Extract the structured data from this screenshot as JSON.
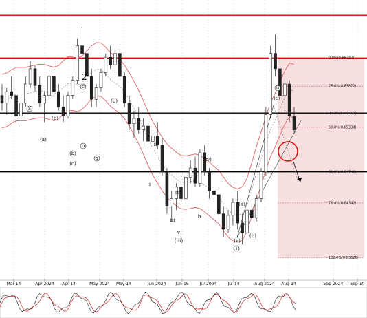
{
  "chart_data": {
    "type": "candlestick",
    "x_tick_labels": [
      "Mar-14",
      "Apr-2024",
      "Apr-14",
      "May-2024",
      "May-14",
      "Jun-2024",
      "Jun-16",
      "Jul-2024",
      "Jul-14",
      "Aug-2024",
      "Aug-14",
      "Sep-2024",
      "Sep-10"
    ],
    "fibonacci_levels": [
      {
        "label": "0.0%(0.86242)",
        "value": 0.86242
      },
      {
        "label": "23.6%(0.85872)",
        "value": 0.85872
      },
      {
        "label": "38.2%(0.85519)",
        "value": 0.85519
      },
      {
        "label": "50.0%(0.85334)",
        "value": 0.85334
      },
      {
        "label": "61.8%(0.84748)",
        "value": 0.84748
      },
      {
        "label": "76.4%(0.84342)",
        "value": 0.84342
      },
      {
        "label": "100.0%(0.83625)",
        "value": 0.83625
      }
    ],
    "wave_labels": [
      {
        "text": "a",
        "style": "circled"
      },
      {
        "text": "(a)",
        "style": "paren"
      },
      {
        "text": "(b)",
        "style": "paren"
      },
      {
        "text": "(c)",
        "style": "paren"
      },
      {
        "text": "b",
        "style": "circled"
      },
      {
        "text": "2",
        "style": "plain"
      },
      {
        "text": "c",
        "style": "circled"
      },
      {
        "text": "(b)",
        "style": "paren"
      },
      {
        "text": "a",
        "style": "circled"
      },
      {
        "text": "b",
        "style": "circled"
      },
      {
        "text": "ii",
        "style": "plain"
      },
      {
        "text": "i",
        "style": "plain"
      },
      {
        "text": "iii",
        "style": "plain"
      },
      {
        "text": "iv",
        "style": "plain"
      },
      {
        "text": "a",
        "style": "plain"
      },
      {
        "text": "b",
        "style": "plain"
      },
      {
        "text": "c",
        "style": "plain"
      },
      {
        "text": "(iv)",
        "style": "paren"
      },
      {
        "text": "v",
        "style": "plain"
      },
      {
        "text": "(iii)",
        "style": "paren"
      },
      {
        "text": "(a)",
        "style": "paren"
      },
      {
        "text": "(b)",
        "style": "paren"
      },
      {
        "text": "(v)",
        "style": "paren"
      },
      {
        "text": "i",
        "style": "circled"
      },
      {
        "text": "ii",
        "style": "circled"
      },
      {
        "text": "(c)",
        "style": "paren"
      }
    ],
    "series": [
      {
        "name": "",
        "type": "candles",
        "values": [
          [
            0.8575,
            0.859,
            0.8555,
            0.8565
          ],
          [
            0.8565,
            0.8585,
            0.855,
            0.858
          ],
          [
            0.858,
            0.86,
            0.857,
            0.8575
          ],
          [
            0.8575,
            0.858,
            0.854,
            0.8548
          ],
          [
            0.8548,
            0.857,
            0.8535,
            0.8565
          ],
          [
            0.8565,
            0.86,
            0.856,
            0.859
          ],
          [
            0.859,
            0.862,
            0.8585,
            0.861
          ],
          [
            0.861,
            0.8615,
            0.858,
            0.8588
          ],
          [
            0.8588,
            0.86,
            0.856,
            0.8565
          ],
          [
            0.8565,
            0.858,
            0.854,
            0.8575
          ],
          [
            0.8575,
            0.8605,
            0.857,
            0.86
          ],
          [
            0.86,
            0.861,
            0.8575,
            0.858
          ],
          [
            0.858,
            0.859,
            0.8555,
            0.856
          ],
          [
            0.856,
            0.8575,
            0.854,
            0.8548
          ],
          [
            0.8548,
            0.858,
            0.8545,
            0.8575
          ],
          [
            0.8575,
            0.86,
            0.857,
            0.8595
          ],
          [
            0.8595,
            0.865,
            0.859,
            0.864
          ],
          [
            0.864,
            0.8665,
            0.8625,
            0.863
          ],
          [
            0.863,
            0.864,
            0.859,
            0.86
          ],
          [
            0.86,
            0.861,
            0.856,
            0.857
          ],
          [
            0.857,
            0.859,
            0.856,
            0.8585
          ],
          [
            0.8585,
            0.861,
            0.858,
            0.8605
          ],
          [
            0.8605,
            0.863,
            0.86,
            0.8625
          ],
          [
            0.8625,
            0.864,
            0.861,
            0.8615
          ],
          [
            0.8615,
            0.8635,
            0.8605,
            0.863
          ],
          [
            0.863,
            0.864,
            0.8595,
            0.86
          ],
          [
            0.86,
            0.8605,
            0.856,
            0.8565
          ],
          [
            0.8565,
            0.8575,
            0.853,
            0.8538
          ],
          [
            0.8538,
            0.8555,
            0.852,
            0.8545
          ],
          [
            0.8545,
            0.856,
            0.8525,
            0.853
          ],
          [
            0.853,
            0.8545,
            0.8515,
            0.8535
          ],
          [
            0.8535,
            0.855,
            0.851,
            0.8515
          ],
          [
            0.8515,
            0.853,
            0.85,
            0.8522
          ],
          [
            0.8522,
            0.854,
            0.8505,
            0.851
          ],
          [
            0.851,
            0.852,
            0.847,
            0.8475
          ],
          [
            0.8475,
            0.848,
            0.842,
            0.843
          ],
          [
            0.843,
            0.845,
            0.841,
            0.844
          ],
          [
            0.844,
            0.846,
            0.8425,
            0.8455
          ],
          [
            0.8455,
            0.847,
            0.8435,
            0.844
          ],
          [
            0.844,
            0.8475,
            0.8435,
            0.8468
          ],
          [
            0.8468,
            0.849,
            0.846,
            0.848
          ],
          [
            0.848,
            0.8495,
            0.8455,
            0.846
          ],
          [
            0.846,
            0.8505,
            0.8455,
            0.85
          ],
          [
            0.85,
            0.851,
            0.847,
            0.8475
          ],
          [
            0.8475,
            0.848,
            0.844,
            0.845
          ],
          [
            0.845,
            0.847,
            0.8435,
            0.8445
          ],
          [
            0.8445,
            0.8455,
            0.841,
            0.842
          ],
          [
            0.842,
            0.843,
            0.839,
            0.84
          ],
          [
            0.84,
            0.8425,
            0.8395,
            0.8418
          ],
          [
            0.8418,
            0.844,
            0.8405,
            0.8435
          ],
          [
            0.8435,
            0.845,
            0.84,
            0.8408
          ],
          [
            0.8408,
            0.842,
            0.838,
            0.8395
          ],
          [
            0.8395,
            0.843,
            0.839,
            0.8425
          ],
          [
            0.8425,
            0.844,
            0.841,
            0.8415
          ],
          [
            0.8415,
            0.8445,
            0.841,
            0.844
          ],
          [
            0.844,
            0.848,
            0.8435,
            0.8475
          ],
          [
            0.8475,
            0.856,
            0.847,
            0.855
          ],
          [
            0.855,
            0.864,
            0.8545,
            0.863
          ],
          [
            0.863,
            0.8655,
            0.86,
            0.861
          ],
          [
            0.861,
            0.862,
            0.8565,
            0.8575
          ],
          [
            0.8575,
            0.86,
            0.8555,
            0.859
          ],
          [
            0.859,
            0.8595,
            0.854,
            0.8548
          ],
          [
            0.8548,
            0.856,
            0.8525,
            0.853
          ]
        ]
      },
      {
        "name": "",
        "type": "band",
        "style": "upper-red"
      },
      {
        "name": "",
        "type": "band",
        "style": "lower-red"
      },
      {
        "name": "",
        "type": "band",
        "style": "mid-dashed"
      }
    ],
    "horizontal_lines": [
      {
        "value": 0.868,
        "color": "#e00000"
      },
      {
        "value": 0.8624,
        "color": "#e00000"
      },
      {
        "value": 0.8552,
        "color": "#000000"
      },
      {
        "value": 0.8475,
        "color": "#000000"
      }
    ],
    "oscillator": {
      "name": "",
      "type": "stochastic"
    },
    "ylim": [
      0.8335,
      0.87
    ],
    "grid": true
  },
  "colors": {
    "support": "#000000",
    "resistance": "#e00000",
    "fib_zone": "#f6d5d5",
    "band": "#e06060",
    "candle_up": "#ffffff",
    "candle_down": "#222222"
  }
}
